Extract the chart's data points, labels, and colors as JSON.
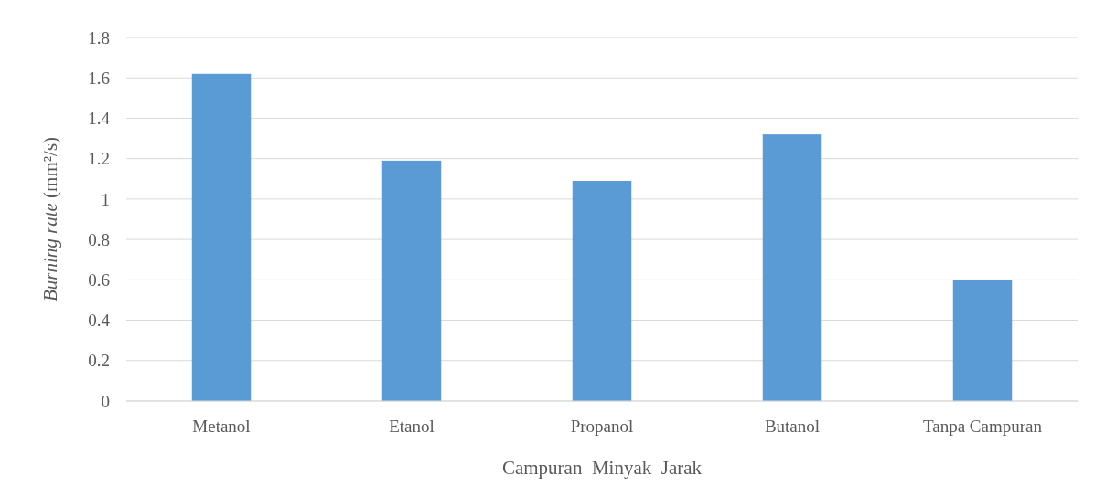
{
  "chart_data": {
    "type": "bar",
    "xlabel": "Campuran  Minyak  Jarak",
    "ylabel": "Burning rate (mm²/s)",
    "categories": [
      "Metanol",
      "Etanol",
      "Propanol",
      "Butanol",
      "Tanpa Campuran"
    ],
    "values": [
      1.62,
      1.19,
      1.09,
      1.32,
      0.6
    ],
    "color": "#5b9bd5",
    "ylim": [
      0,
      1.8
    ],
    "yticks": [
      0,
      0.2,
      0.4,
      0.6,
      0.8,
      1,
      1.2,
      1.4,
      1.6,
      1.8
    ],
    "grid": "y"
  }
}
